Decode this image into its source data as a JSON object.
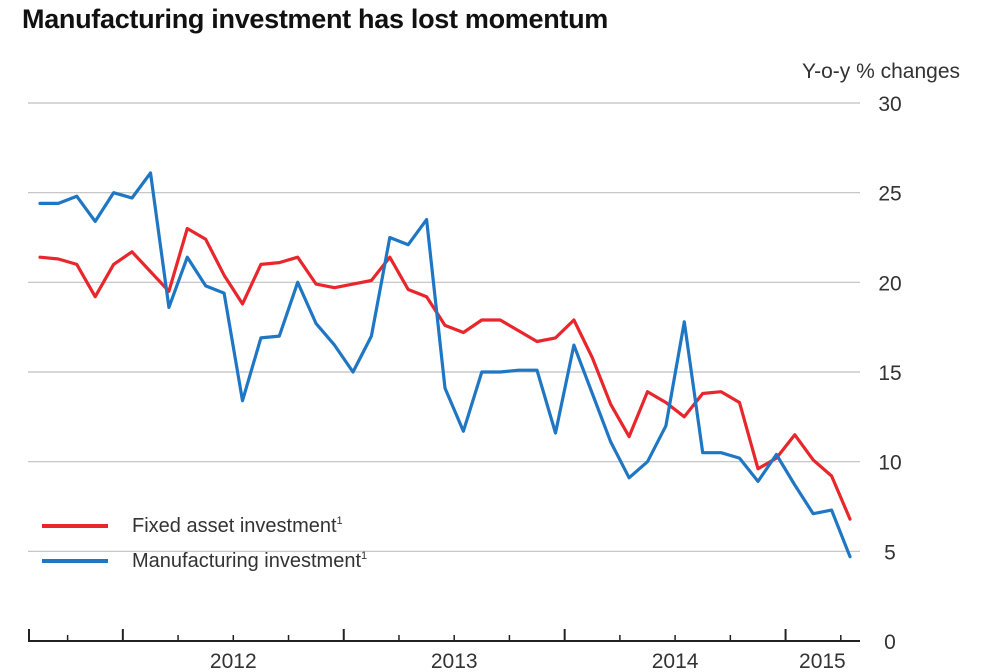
{
  "chart_data": {
    "type": "line",
    "title": "Manufacturing investment has lost momentum",
    "ylabel": "Y-o-y % changes",
    "xlabel": "",
    "ylim": [
      0,
      30
    ],
    "yticks": [
      "0",
      "5",
      "10",
      "15",
      "20",
      "25",
      "30"
    ],
    "xtick_labels": [
      "2012",
      "2013",
      "2014",
      "2015"
    ],
    "x_range": [
      "2011-08",
      "2015-04"
    ],
    "grid": true,
    "legend_position": "bottom-left",
    "series": [
      {
        "name": "Fixed asset investment",
        "footnote_marker": "1",
        "color": "#e8262c",
        "points": [
          [
            "2011-08",
            21.4
          ],
          [
            "2011-09",
            21.3
          ],
          [
            "2011-10",
            21.0
          ],
          [
            "2011-11",
            19.2
          ],
          [
            "2011-12",
            21.0
          ],
          [
            "2012-01",
            21.7
          ],
          [
            "2012-02",
            20.6
          ],
          [
            "2012-03",
            19.5
          ],
          [
            "2012-04",
            23.0
          ],
          [
            "2012-05",
            22.4
          ],
          [
            "2012-06",
            20.4
          ],
          [
            "2012-07",
            18.8
          ],
          [
            "2012-08",
            21.0
          ],
          [
            "2012-09",
            21.1
          ],
          [
            "2012-10",
            21.4
          ],
          [
            "2012-11",
            19.9
          ],
          [
            "2012-12",
            19.7
          ],
          [
            "2013-01",
            19.9
          ],
          [
            "2013-02",
            20.1
          ],
          [
            "2013-03",
            21.4
          ],
          [
            "2013-04",
            19.6
          ],
          [
            "2013-05",
            19.2
          ],
          [
            "2013-06",
            17.6
          ],
          [
            "2013-07",
            17.2
          ],
          [
            "2013-08",
            17.9
          ],
          [
            "2013-09",
            17.9
          ],
          [
            "2013-10",
            17.3
          ],
          [
            "2013-11",
            16.7
          ],
          [
            "2013-12",
            16.9
          ],
          [
            "2014-01",
            17.9
          ],
          [
            "2014-02",
            15.8
          ],
          [
            "2014-03",
            13.2
          ],
          [
            "2014-04",
            11.4
          ],
          [
            "2014-05",
            13.9
          ],
          [
            "2014-06",
            13.3
          ],
          [
            "2014-07",
            12.5
          ],
          [
            "2014-08",
            13.8
          ],
          [
            "2014-09",
            13.9
          ],
          [
            "2014-10",
            13.3
          ],
          [
            "2014-11",
            9.6
          ],
          [
            "2014-12",
            10.2
          ],
          [
            "2015-01",
            11.5
          ],
          [
            "2015-02",
            10.1
          ],
          [
            "2015-03",
            9.2
          ],
          [
            "2015-04",
            6.8
          ]
        ]
      },
      {
        "name": "Manufacturing investment",
        "footnote_marker": "1",
        "color": "#1f77c3",
        "points": [
          [
            "2011-08",
            24.4
          ],
          [
            "2011-09",
            24.4
          ],
          [
            "2011-10",
            24.8
          ],
          [
            "2011-11",
            23.4
          ],
          [
            "2011-12",
            25.0
          ],
          [
            "2012-01",
            24.7
          ],
          [
            "2012-02",
            26.1
          ],
          [
            "2012-03",
            18.6
          ],
          [
            "2012-04",
            21.4
          ],
          [
            "2012-05",
            19.8
          ],
          [
            "2012-06",
            19.4
          ],
          [
            "2012-07",
            13.4
          ],
          [
            "2012-08",
            16.9
          ],
          [
            "2012-09",
            17.0
          ],
          [
            "2012-10",
            20.0
          ],
          [
            "2012-11",
            17.7
          ],
          [
            "2012-12",
            16.5
          ],
          [
            "2013-01",
            15.0
          ],
          [
            "2013-02",
            17.0
          ],
          [
            "2013-03",
            22.5
          ],
          [
            "2013-04",
            22.1
          ],
          [
            "2013-05",
            23.5
          ],
          [
            "2013-06",
            14.1
          ],
          [
            "2013-07",
            11.7
          ],
          [
            "2013-08",
            15.0
          ],
          [
            "2013-09",
            15.0
          ],
          [
            "2013-10",
            15.1
          ],
          [
            "2013-11",
            15.1
          ],
          [
            "2013-12",
            11.6
          ],
          [
            "2014-01",
            16.5
          ],
          [
            "2014-02",
            13.8
          ],
          [
            "2014-03",
            11.1
          ],
          [
            "2014-04",
            9.1
          ],
          [
            "2014-05",
            10.0
          ],
          [
            "2014-06",
            12.0
          ],
          [
            "2014-07",
            17.8
          ],
          [
            "2014-08",
            10.5
          ],
          [
            "2014-09",
            10.5
          ],
          [
            "2014-10",
            10.2
          ],
          [
            "2014-11",
            8.9
          ],
          [
            "2014-12",
            10.4
          ],
          [
            "2015-01",
            8.7
          ],
          [
            "2015-02",
            7.1
          ],
          [
            "2015-03",
            7.3
          ],
          [
            "2015-04",
            4.7
          ]
        ]
      }
    ]
  }
}
